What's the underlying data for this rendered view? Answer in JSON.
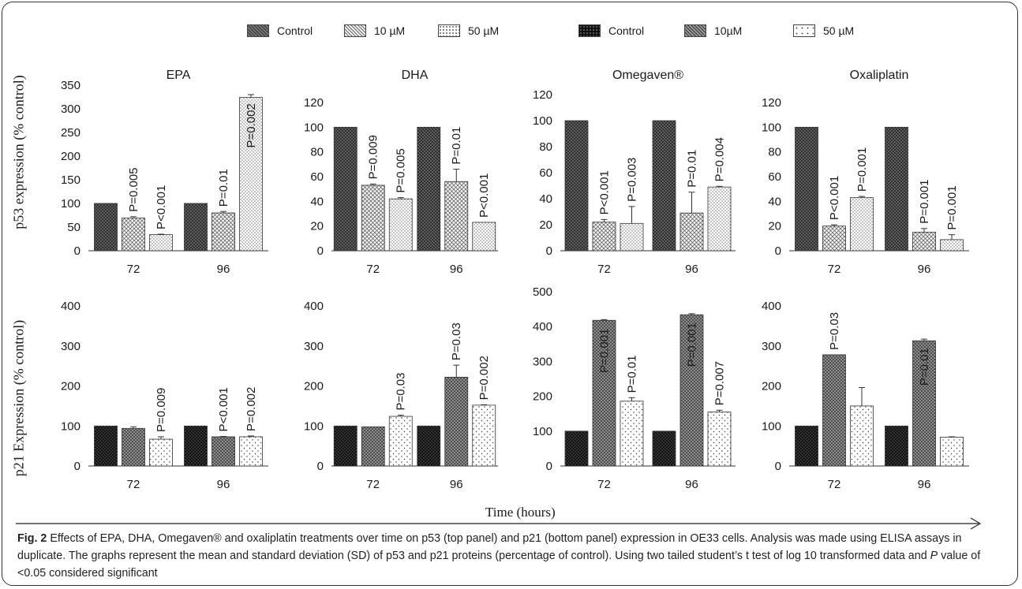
{
  "legend": {
    "items": [
      {
        "label": "Control",
        "pattern": "cross-dark"
      },
      {
        "label": "10 µM",
        "pattern": "crosshatch"
      },
      {
        "label": "50 µM",
        "pattern": "dots-dense"
      },
      {
        "label": "Control",
        "pattern": "black-dots"
      },
      {
        "label": "10µM",
        "pattern": "cross-mid"
      },
      {
        "label": "50 µM",
        "pattern": "dots-sparse"
      }
    ]
  },
  "y_labels": {
    "top": "p53 expression (% control)",
    "bottom": "p21 Expression (% control)"
  },
  "x_label": "Time (hours)",
  "caption": {
    "fig": "Fig. 2",
    "text1": " Effects of EPA, DHA, Omegaven® and oxaliplatin treatments over time on p53 (top panel) and p21 (bottom panel) expression in OE33 cells. Analysis was made using ELISA assays in duplicate. The graphs represent the mean and standard deviation (SD) of p53 and p21 proteins (percentage of control). Using two tailed student’s t test of log 10 transformed data and ",
    "p_italic": "P",
    "text2": " value of <0.05 considered significant"
  },
  "colors": {
    "frame": "#333333",
    "axis": "#333333",
    "bar_edge": "#333333"
  },
  "chart_data": [
    {
      "type": "bar",
      "title": "EPA",
      "categories": [
        "72",
        "96"
      ],
      "ylim": [
        0,
        350
      ],
      "yticks": [
        0,
        50,
        100,
        150,
        200,
        250,
        300,
        350
      ],
      "patterns": [
        "cross-dark",
        "crosshatch",
        "dots-dense"
      ],
      "series": [
        {
          "values": [
            100,
            100
          ],
          "errors": [
            0,
            0
          ],
          "pvalues": [
            "",
            ""
          ]
        },
        {
          "values": [
            69,
            80
          ],
          "errors": [
            3,
            3
          ],
          "pvalues": [
            "P=0.005",
            "P=0.01"
          ]
        },
        {
          "values": [
            34,
            324
          ],
          "errors": [
            1,
            6
          ],
          "pvalues": [
            "P<0.001",
            "P=0.002"
          ]
        }
      ]
    },
    {
      "type": "bar",
      "title": "DHA",
      "categories": [
        "72",
        "96"
      ],
      "ylim": [
        0,
        120
      ],
      "yticks": [
        0,
        20,
        40,
        60,
        80,
        100,
        120
      ],
      "patterns": [
        "cross-dark",
        "crosshatch",
        "dots-dense"
      ],
      "series": [
        {
          "values": [
            100,
            100
          ],
          "errors": [
            0,
            0
          ],
          "pvalues": [
            "",
            ""
          ]
        },
        {
          "values": [
            53,
            56
          ],
          "errors": [
            1,
            10
          ],
          "pvalues": [
            "P=0.009",
            "P=0.01"
          ]
        },
        {
          "values": [
            42,
            23
          ],
          "errors": [
            1,
            0
          ],
          "pvalues": [
            "P=0.005",
            "P<0.001"
          ]
        }
      ]
    },
    {
      "type": "bar",
      "title": "Omegaven®",
      "categories": [
        "72",
        "96"
      ],
      "ylim": [
        0,
        120
      ],
      "yticks": [
        0,
        20,
        40,
        60,
        80,
        100,
        120
      ],
      "patterns": [
        "cross-dark",
        "crosshatch",
        "dots-dense"
      ],
      "series": [
        {
          "values": [
            100,
            100
          ],
          "errors": [
            0,
            0
          ],
          "pvalues": [
            "",
            ""
          ]
        },
        {
          "values": [
            22,
            29
          ],
          "errors": [
            2,
            16
          ],
          "pvalues": [
            "P<0.001",
            "P=0.01"
          ]
        },
        {
          "values": [
            21,
            49
          ],
          "errors": [
            13,
            0.5
          ],
          "pvalues": [
            "P=0.003",
            "P=0.004"
          ]
        }
      ]
    },
    {
      "type": "bar",
      "title": "Oxaliplatin",
      "categories": [
        "72",
        "96"
      ],
      "ylim": [
        0,
        120
      ],
      "yticks": [
        0,
        20,
        40,
        60,
        80,
        100,
        120
      ],
      "patterns": [
        "cross-dark",
        "crosshatch",
        "dots-dense"
      ],
      "series": [
        {
          "values": [
            100,
            100
          ],
          "errors": [
            0,
            0
          ],
          "pvalues": [
            "",
            ""
          ]
        },
        {
          "values": [
            20,
            15
          ],
          "errors": [
            1,
            3
          ],
          "pvalues": [
            "P<0.001",
            "P=0.001"
          ]
        },
        {
          "values": [
            43,
            9
          ],
          "errors": [
            1,
            4
          ],
          "pvalues": [
            "P=0.001",
            "P=0.001"
          ]
        }
      ]
    },
    {
      "type": "bar",
      "title": "",
      "categories": [
        "72",
        "96"
      ],
      "ylim": [
        0,
        400
      ],
      "yticks": [
        0,
        100,
        200,
        300,
        400
      ],
      "patterns": [
        "black-dots",
        "cross-mid",
        "dots-sparse"
      ],
      "series": [
        {
          "values": [
            100,
            100
          ],
          "errors": [
            0,
            0
          ],
          "pvalues": [
            "",
            ""
          ]
        },
        {
          "values": [
            94,
            73
          ],
          "errors": [
            4,
            1
          ],
          "pvalues": [
            "",
            "P<0.001"
          ]
        },
        {
          "values": [
            67,
            73
          ],
          "errors": [
            6,
            2
          ],
          "pvalues": [
            "P=0.009",
            "P=0.002"
          ]
        }
      ]
    },
    {
      "type": "bar",
      "title": "",
      "categories": [
        "72",
        "96"
      ],
      "ylim": [
        0,
        400
      ],
      "yticks": [
        0,
        100,
        200,
        300,
        400
      ],
      "patterns": [
        "black-dots",
        "cross-mid",
        "dots-sparse"
      ],
      "series": [
        {
          "values": [
            100,
            100
          ],
          "errors": [
            0,
            0
          ],
          "pvalues": [
            "",
            ""
          ]
        },
        {
          "values": [
            98,
            222
          ],
          "errors": [
            0,
            30
          ],
          "pvalues": [
            "",
            "P=0.03"
          ]
        },
        {
          "values": [
            124,
            152
          ],
          "errors": [
            3,
            1
          ],
          "pvalues": [
            "P=0.03",
            "P=0.002"
          ]
        }
      ]
    },
    {
      "type": "bar",
      "title": "",
      "categories": [
        "72",
        "96"
      ],
      "ylim": [
        0,
        500
      ],
      "yticks": [
        0,
        100,
        200,
        300,
        400,
        500
      ],
      "patterns": [
        "black-dots",
        "cross-mid",
        "dots-sparse"
      ],
      "series": [
        {
          "values": [
            100,
            100
          ],
          "errors": [
            0,
            0
          ],
          "pvalues": [
            "",
            ""
          ]
        },
        {
          "values": [
            418,
            434
          ],
          "errors": [
            2,
            3
          ],
          "pvalues": [
            "P=0.001",
            "P=0.001"
          ]
        },
        {
          "values": [
            186,
            155
          ],
          "errors": [
            10,
            5
          ],
          "pvalues": [
            "P=0.01",
            "P=0.007"
          ]
        }
      ]
    },
    {
      "type": "bar",
      "title": "",
      "categories": [
        "72",
        "96"
      ],
      "ylim": [
        0,
        400
      ],
      "yticks": [
        0,
        100,
        200,
        300,
        400
      ],
      "patterns": [
        "black-dots",
        "cross-mid",
        "dots-sparse"
      ],
      "series": [
        {
          "values": [
            100,
            100
          ],
          "errors": [
            0,
            0
          ],
          "pvalues": [
            "",
            ""
          ]
        },
        {
          "values": [
            278,
            313
          ],
          "errors": [
            0,
            4
          ],
          "pvalues": [
            "P=0.03",
            "P=0.01"
          ]
        },
        {
          "values": [
            150,
            72
          ],
          "errors": [
            46,
            1
          ],
          "pvalues": [
            "",
            ""
          ]
        }
      ]
    }
  ]
}
